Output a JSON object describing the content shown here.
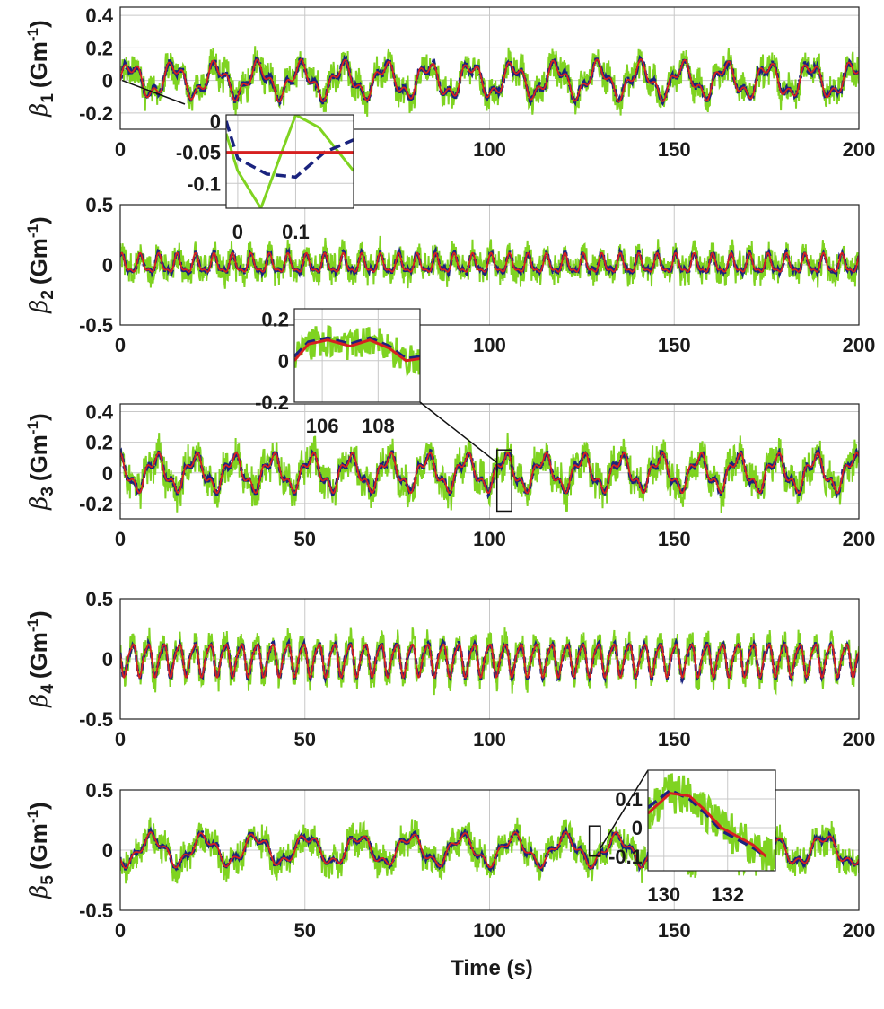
{
  "colors": {
    "measured": "#7fd321",
    "estimated": "#1a237e",
    "true": "#d62020",
    "grid": "#c8c8c8",
    "axis": "#222222"
  },
  "chart_data": [
    {
      "type": "line",
      "name": "beta1",
      "ylabel_symbol": "β",
      "ylabel_sub": "1",
      "ylabel_unit": "(Gm",
      "ylabel_sup": "-1",
      "ylabel_close": ")",
      "xlim": [
        0,
        200
      ],
      "ylim": [
        -0.3,
        0.45
      ],
      "xticks": [
        0,
        50,
        100,
        150,
        200
      ],
      "xtick_labels": [
        "0",
        "",
        "100",
        "150",
        "200"
      ],
      "yticks": [
        0.4,
        0.2,
        0,
        -0.2
      ],
      "ytick_labels": [
        "0.4",
        "0.2",
        "0",
        "-0.2"
      ],
      "signal": {
        "period": 11.5,
        "amplitude": 0.09,
        "harmonic_period": 4.0,
        "harmonic_amplitude": 0.04,
        "noise_amplitude": 0.09
      },
      "inset": {
        "xlim": [
          -0.02,
          0.2
        ],
        "ylim": [
          -0.14,
          0.01
        ],
        "xticks": [
          0,
          0.1
        ],
        "xtick_labels": [
          "0",
          "0.1"
        ],
        "yticks": [
          0,
          -0.05,
          -0.1
        ],
        "ytick_labels": [
          "0",
          "-0.05",
          "-0.1"
        ],
        "series": {
          "true": [
            [
              -0.02,
              -0.05
            ],
            [
              0.2,
              -0.05
            ]
          ],
          "estimated": [
            [
              -0.02,
              0.0
            ],
            [
              0.0,
              -0.06
            ],
            [
              0.05,
              -0.085
            ],
            [
              0.1,
              -0.09
            ],
            [
              0.15,
              -0.05
            ],
            [
              0.2,
              -0.03
            ]
          ],
          "measured": [
            [
              -0.02,
              -0.02
            ],
            [
              0.0,
              -0.08
            ],
            [
              0.04,
              -0.14
            ],
            [
              0.08,
              -0.04
            ],
            [
              0.1,
              0.01
            ],
            [
              0.14,
              -0.01
            ],
            [
              0.2,
              -0.08
            ]
          ]
        }
      }
    },
    {
      "type": "line",
      "name": "beta2",
      "ylabel_symbol": "β",
      "ylabel_sub": "2",
      "ylabel_unit": "(Gm",
      "ylabel_sup": "-1",
      "ylabel_close": ")",
      "xlim": [
        0,
        200
      ],
      "ylim": [
        -0.5,
        0.5
      ],
      "xticks": [
        0,
        50,
        100,
        150,
        200
      ],
      "xtick_labels": [
        "0",
        "",
        "100",
        "150",
        "200"
      ],
      "yticks": [
        0.5,
        0,
        -0.5
      ],
      "ytick_labels": [
        "0.5",
        "0",
        "-0.5"
      ],
      "signal": {
        "period": 5.0,
        "amplitude": 0.07,
        "harmonic_period": 2.5,
        "harmonic_amplitude": 0.03,
        "noise_amplitude": 0.12
      }
    },
    {
      "type": "line",
      "name": "beta3",
      "ylabel_symbol": "β",
      "ylabel_sub": "3",
      "ylabel_unit": "(Gm",
      "ylabel_sup": "-1",
      "ylabel_close": ")",
      "xlim": [
        0,
        200
      ],
      "ylim": [
        -0.3,
        0.45
      ],
      "xticks": [
        0,
        50,
        100,
        150,
        200
      ],
      "xtick_labels": [
        "0",
        "50",
        "100",
        "150",
        "200"
      ],
      "yticks": [
        0.4,
        0.2,
        0,
        -0.2
      ],
      "ytick_labels": [
        "0.4",
        "0.2",
        "0",
        "-0.2"
      ],
      "signal": {
        "period": 10.5,
        "amplitude": 0.1,
        "harmonic_period": 3.5,
        "harmonic_amplitude": 0.04,
        "noise_amplitude": 0.11
      },
      "zoom_box": {
        "x": [
          102,
          106
        ],
        "y": [
          -0.25,
          0.15
        ]
      },
      "inset": {
        "xlim": [
          105,
          109.5
        ],
        "ylim": [
          -0.2,
          0.25
        ],
        "xticks": [
          106,
          108
        ],
        "xtick_labels": [
          "106",
          "108"
        ],
        "yticks": [
          0.2,
          0,
          -0.2
        ],
        "ytick_labels": [
          "0.2",
          "0",
          "-0.2"
        ],
        "series": {
          "true": [
            [
              105,
              0.0
            ],
            [
              105.5,
              0.08
            ],
            [
              106.2,
              0.1
            ],
            [
              107,
              0.07
            ],
            [
              107.7,
              0.1
            ],
            [
              108.4,
              0.06
            ],
            [
              109,
              0.0
            ],
            [
              109.5,
              0.01
            ]
          ],
          "estimated": [
            [
              105,
              0.02
            ],
            [
              105.5,
              0.09
            ],
            [
              106.2,
              0.11
            ],
            [
              107,
              0.08
            ],
            [
              107.7,
              0.11
            ],
            [
              108.4,
              0.07
            ],
            [
              109,
              0.01
            ],
            [
              109.5,
              0.02
            ]
          ]
        },
        "noise_amplitude": 0.08
      }
    },
    {
      "type": "line",
      "name": "beta4",
      "ylabel_symbol": "β",
      "ylabel_sub": "4",
      "ylabel_unit": "(Gm",
      "ylabel_sup": "-1",
      "ylabel_close": ")",
      "xlim": [
        0,
        200
      ],
      "ylim": [
        -0.5,
        0.5
      ],
      "xticks": [
        0,
        50,
        100,
        150,
        200
      ],
      "xtick_labels": [
        "0",
        "50",
        "100",
        "150",
        "200"
      ],
      "yticks": [
        0.5,
        0,
        -0.5
      ],
      "ytick_labels": [
        "0.5",
        "0",
        "-0.5"
      ],
      "signal": {
        "period": 4.2,
        "amplitude": 0.13,
        "harmonic_period": 2.1,
        "harmonic_amplitude": 0.03,
        "noise_amplitude": 0.12
      }
    },
    {
      "type": "line",
      "name": "beta5",
      "ylabel_symbol": "β",
      "ylabel_sub": "5",
      "ylabel_unit": "(Gm",
      "ylabel_sup": "-1",
      "ylabel_close": ")",
      "xlim": [
        0,
        200
      ],
      "ylim": [
        -0.5,
        0.5
      ],
      "xticks": [
        0,
        50,
        100,
        150,
        200
      ],
      "xtick_labels": [
        "0",
        "50",
        "100",
        "150",
        "200"
      ],
      "yticks": [
        0.5,
        0,
        -0.5
      ],
      "ytick_labels": [
        "0.5",
        "0",
        "-0.5"
      ],
      "xlabel": "Time (s)",
      "signal": {
        "period": 14.0,
        "amplitude": 0.11,
        "harmonic_period": 4.5,
        "harmonic_amplitude": 0.04,
        "noise_amplitude": 0.12
      },
      "zoom_box": {
        "x": [
          127,
          130
        ],
        "y": [
          -0.05,
          0.2
        ]
      },
      "inset": {
        "xlim": [
          129.5,
          133.5
        ],
        "ylim": [
          -0.15,
          0.2
        ],
        "xticks": [
          130,
          132
        ],
        "xtick_labels": [
          "130",
          "132"
        ],
        "yticks": [
          0.1,
          0,
          -0.1
        ],
        "ytick_labels": [
          "0.1",
          "0",
          "-0.1"
        ],
        "series": {
          "true": [
            [
              129.5,
              0.05
            ],
            [
              130.2,
              0.12
            ],
            [
              130.8,
              0.11
            ],
            [
              131.3,
              0.06
            ],
            [
              131.8,
              0.0
            ],
            [
              132.3,
              -0.03
            ],
            [
              132.8,
              -0.06
            ],
            [
              133.2,
              -0.1
            ]
          ],
          "estimated": [
            [
              129.5,
              0.07
            ],
            [
              130.2,
              0.13
            ],
            [
              130.8,
              0.1
            ],
            [
              131.3,
              0.05
            ],
            [
              131.8,
              -0.01
            ],
            [
              132.3,
              -0.04
            ],
            [
              132.8,
              -0.07
            ],
            [
              133.2,
              -0.1
            ]
          ]
        },
        "noise_amplitude": 0.07
      }
    }
  ]
}
